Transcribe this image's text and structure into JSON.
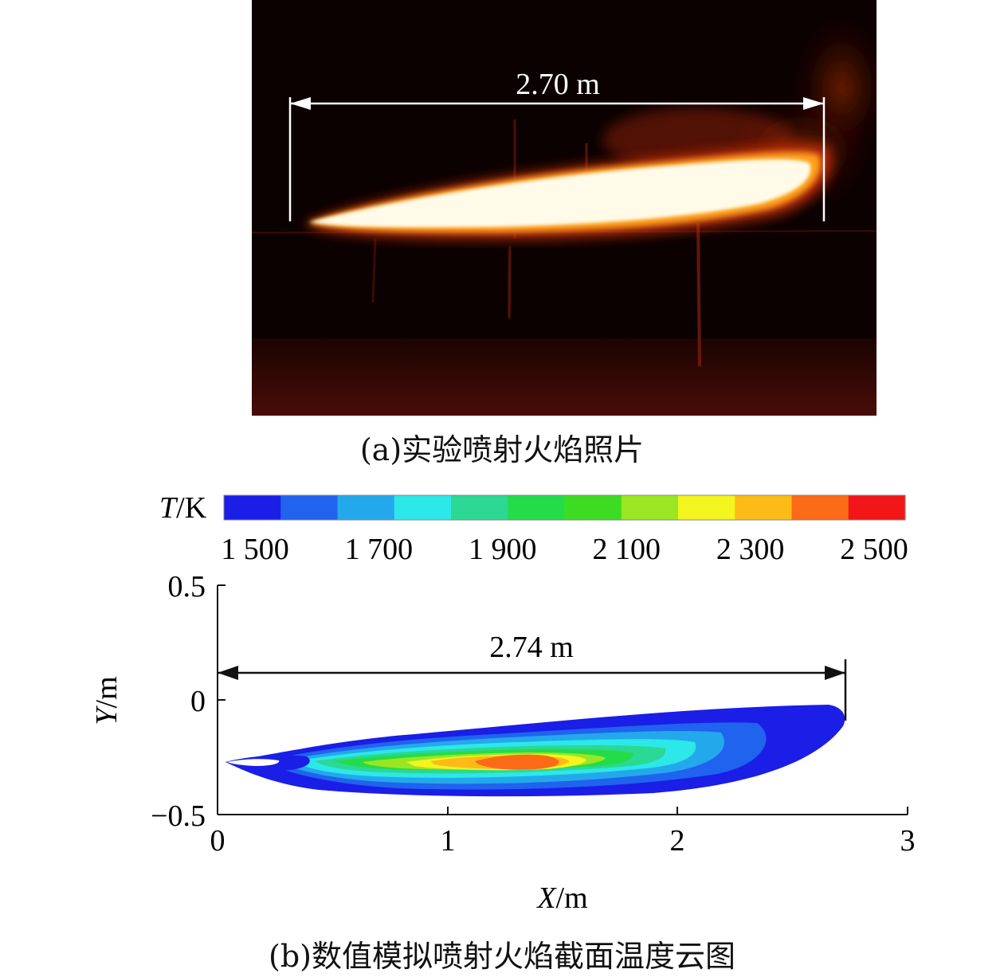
{
  "figure": {
    "caption_a": "(a)实验喷射火焰照片",
    "caption_b": "(b)数值模拟喷射火焰截面温度云图"
  },
  "photo": {
    "length_label": "2.70 m"
  },
  "colorbar": {
    "label_var": "T",
    "label_unit": "/K",
    "ticks": [
      "1 500",
      "1 700",
      "1 900",
      "2 100",
      "2 300",
      "2 500"
    ],
    "colors": [
      "#1a1ee6",
      "#1f63ee",
      "#24a8ec",
      "#2ce8e8",
      "#2bd894",
      "#24dc4a",
      "#3ddc22",
      "#9ae622",
      "#f4f41e",
      "#fcbb16",
      "#fb6a16",
      "#f21618"
    ]
  },
  "chart_data": {
    "type": "heatmap",
    "xlabel_var": "X",
    "xlabel_unit": "/m",
    "ylabel_var": "Y",
    "ylabel_unit": "/m",
    "xlim": [
      0,
      3
    ],
    "ylim": [
      -0.5,
      0.5
    ],
    "x_ticks": [
      "0",
      "1",
      "2",
      "3"
    ],
    "y_ticks": [
      "0.5",
      "0",
      "−0.5"
    ],
    "length_label": "2.74 m",
    "flame_length_m": 2.74,
    "temperature_range_K": [
      1500,
      2500
    ]
  }
}
